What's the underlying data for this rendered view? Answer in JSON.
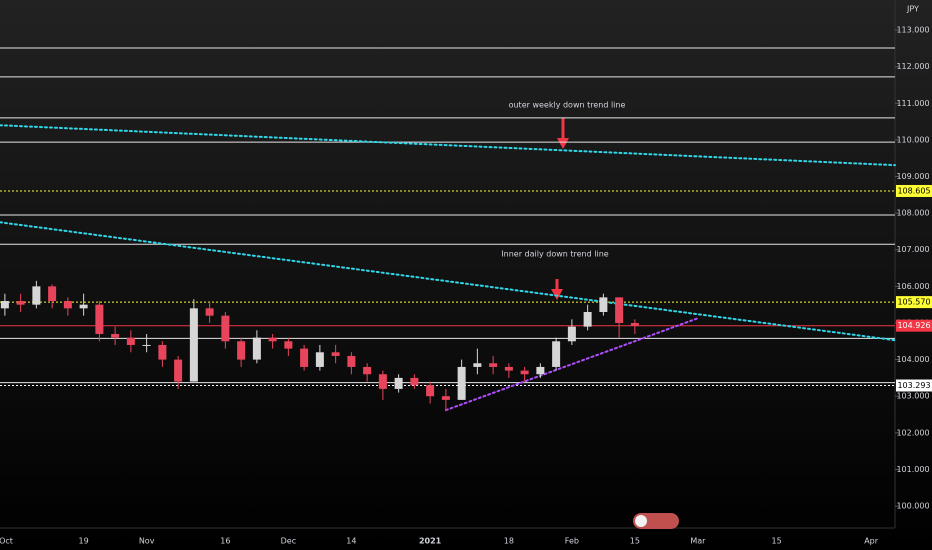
{
  "chart_data": {
    "type": "candlestick",
    "currency": "JPY",
    "categories": [
      "Oct",
      null,
      null,
      null,
      null,
      "19",
      null,
      null,
      null,
      "Nov",
      null,
      null,
      null,
      null,
      "16",
      null,
      null,
      null,
      "Dec",
      null,
      null,
      null,
      "14",
      null,
      null,
      null,
      null,
      "2021",
      null,
      null,
      null,
      null,
      "18",
      null,
      null,
      null,
      "Feb",
      null,
      null,
      null,
      "15",
      null,
      null,
      null,
      "Mar",
      null,
      null,
      null,
      null,
      "15",
      null,
      null,
      null,
      null,
      null,
      "Apr",
      null
    ],
    "open": [
      105.4,
      105.6,
      105.5,
      106.0,
      105.6,
      105.4,
      105.5,
      104.7,
      104.6,
      104.4,
      104.4,
      104.0,
      103.4,
      105.4,
      105.2,
      104.5,
      104.0,
      104.6,
      104.5,
      104.3,
      103.8,
      104.2,
      104.1,
      103.8,
      103.6,
      103.2,
      103.5,
      103.3,
      103.0,
      102.9,
      103.8,
      103.9,
      103.8,
      103.7,
      103.6,
      103.8,
      104.5,
      104.9,
      105.3,
      105.7,
      105.0,
      null,
      null,
      null,
      null,
      null,
      null,
      null,
      null,
      null,
      null,
      null,
      null,
      null,
      null,
      null,
      null
    ],
    "high": [
      105.8,
      105.8,
      106.15,
      106.05,
      105.7,
      105.8,
      105.6,
      104.9,
      104.8,
      104.7,
      104.5,
      104.1,
      105.65,
      105.6,
      105.3,
      104.6,
      104.8,
      104.7,
      104.6,
      104.4,
      104.4,
      104.4,
      104.2,
      103.9,
      103.7,
      103.6,
      103.6,
      103.4,
      103.2,
      104.0,
      104.3,
      104.1,
      103.9,
      103.8,
      103.9,
      104.6,
      105.1,
      105.5,
      105.8,
      105.7,
      105.1,
      null,
      null,
      null,
      null,
      null,
      null,
      null,
      null,
      null,
      null,
      null,
      null,
      null,
      null,
      null,
      null
    ],
    "low": [
      105.2,
      105.3,
      105.4,
      105.4,
      105.2,
      105.2,
      104.5,
      104.4,
      104.2,
      104.2,
      103.8,
      103.2,
      103.4,
      105.0,
      104.3,
      103.8,
      103.9,
      104.3,
      104.1,
      103.7,
      103.7,
      103.9,
      103.6,
      103.4,
      102.9,
      103.1,
      103.2,
      102.8,
      102.6,
      102.9,
      103.6,
      103.6,
      103.5,
      103.4,
      103.5,
      103.7,
      104.4,
      104.8,
      105.2,
      104.6,
      104.7,
      null,
      null,
      null,
      null,
      null,
      null,
      null,
      null,
      null,
      null,
      null,
      null,
      null,
      null,
      null,
      null
    ],
    "close": [
      105.6,
      105.5,
      106.0,
      105.6,
      105.4,
      105.5,
      104.7,
      104.6,
      104.4,
      104.4,
      104.0,
      103.4,
      105.4,
      105.2,
      104.5,
      104.0,
      104.6,
      104.5,
      104.3,
      103.8,
      104.2,
      104.1,
      103.8,
      103.6,
      103.2,
      103.5,
      103.3,
      103.0,
      102.9,
      103.8,
      103.9,
      103.8,
      103.7,
      103.6,
      103.8,
      104.5,
      104.9,
      105.3,
      105.7,
      105.0,
      104.93,
      null,
      null,
      null,
      null,
      null,
      null,
      null,
      null,
      null,
      null,
      null,
      null,
      null,
      null,
      null,
      null
    ],
    "up_color": "#d6d6d6",
    "down_color": "#e8455c",
    "ylim": [
      99.62,
      113.82
    ],
    "yticks": [
      {
        "value": 100,
        "label": "100.000"
      },
      {
        "value": 101,
        "label": "101.000"
      },
      {
        "value": 102,
        "label": "102.000"
      },
      {
        "value": 103,
        "label": "103.000"
      },
      {
        "value": 104,
        "label": "104.000"
      },
      {
        "value": 105,
        "label": "105.000"
      },
      {
        "value": 106,
        "label": "106.000"
      },
      {
        "value": 107,
        "label": "107.000"
      },
      {
        "value": 108,
        "label": "108.000"
      },
      {
        "value": 109,
        "label": "109.000"
      },
      {
        "value": 110,
        "label": "110.000"
      },
      {
        "value": 111,
        "label": "111.000"
      },
      {
        "value": 112,
        "label": "112.000"
      },
      {
        "value": 113,
        "label": "113.000"
      }
    ],
    "hlines": [
      112.51,
      111.72,
      110.6,
      109.94,
      107.95,
      107.15,
      104.58,
      103.37
    ],
    "levels": [
      {
        "value": 108.605,
        "label": "108.605",
        "color": "#ffff33",
        "style": "dotted"
      },
      {
        "value": 105.57,
        "label": "105.570",
        "color": "#ffff33",
        "style": "dotted"
      },
      {
        "value": 104.926,
        "label": "104.926",
        "color": "#f23645",
        "style": "solid"
      },
      {
        "value": 103.293,
        "label": "103.293",
        "color": "#ffffff",
        "style": "dotted"
      }
    ],
    "trendlines": [
      {
        "values": [
          110.4,
          109.31
        ],
        "color": "#2fd7e8"
      },
      {
        "values": [
          107.75,
          104.53
        ],
        "color": "#2fd7e8"
      },
      {
        "values": [
          102.62,
          105.13
        ],
        "span": [
          28,
          44
        ],
        "color": "#b04dff"
      }
    ],
    "annotations": [
      "outer weekly down trend line",
      "Inner daily down trend line"
    ]
  }
}
